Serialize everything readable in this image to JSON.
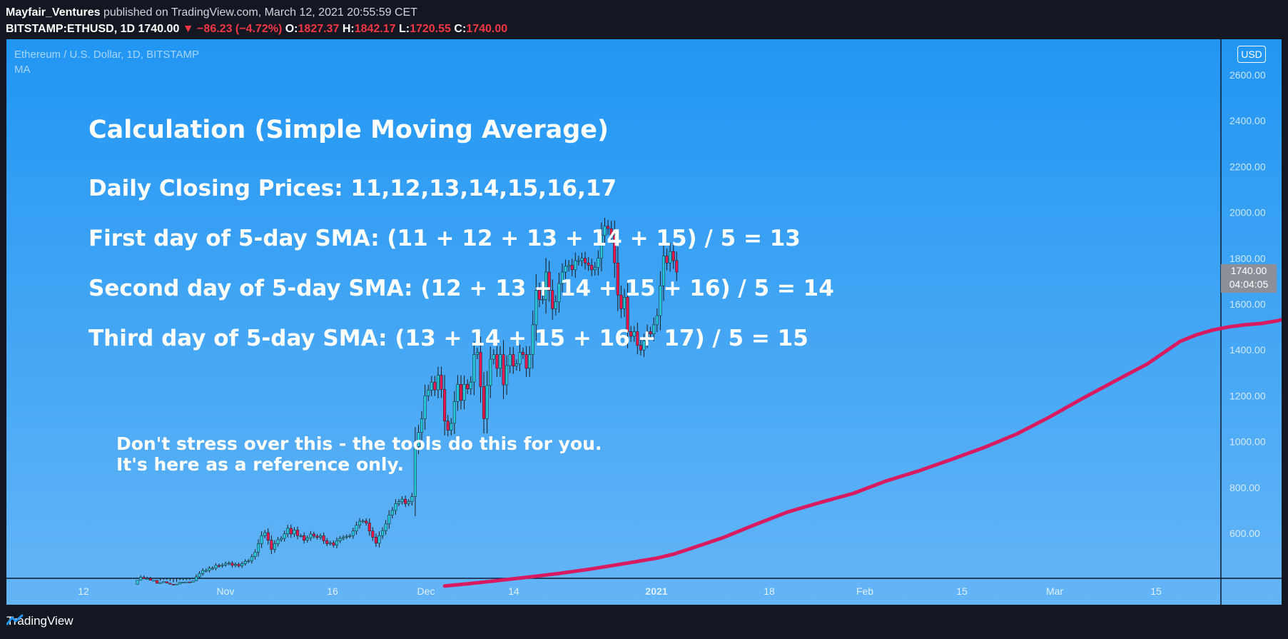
{
  "header": {
    "publisher": "Mayfair_Ventures",
    "published_text": "published on TradingView.com, March 12, 2021 20:55:59 CET",
    "symbol": "BITSTAMP:ETHUSD, 1D",
    "last": "1740.00",
    "change": "▼ −86.23 (−4.72%)",
    "o_label": "O:",
    "o_val": "1827.37",
    "h_label": "H:",
    "h_val": "1842.17",
    "l_label": "L:",
    "l_val": "1720.55",
    "c_label": "C:",
    "c_val": "1740.00"
  },
  "legend": {
    "line1": "Ethereum / U.S. Dollar, 1D, BITSTAMP",
    "line2": "MA"
  },
  "overlay": {
    "title": "Calculation (Simple Moving Average)",
    "line1": "Daily Closing Prices: 11,12,13,14,15,16,17",
    "line2": "First day of 5-day SMA: (11 + 12 + 13 + 14 + 15) / 5 = 13",
    "line3": "Second day of 5-day SMA: (12 + 13 + 14 + 15 + 16) / 5 = 14",
    "line4": "Third day of 5-day SMA: (13 + 14 + 15 + 16 + 17) / 5 = 15",
    "note1": "Don't stress over this - the tools do this for you.",
    "note2": "It's here as a reference only."
  },
  "currency": "USD",
  "price_tag": {
    "price": "1740.00",
    "countdown": "04:04:05"
  },
  "footer": {
    "brand": "TradingView"
  },
  "colors": {
    "bg_top": "#2196f3",
    "bg_bottom": "#64b5f6",
    "up": "#26c6da",
    "down": "#e8174e",
    "ma": "#d81b60"
  },
  "chart_data": {
    "type": "candlestick",
    "symbol": "BITSTAMP:ETHUSD",
    "interval": "1D",
    "y_ticks": [
      "600.00",
      "800.00",
      "1000.00",
      "1200.00",
      "1400.00",
      "1600.00",
      "1800.00",
      "2000.00",
      "2200.00",
      "2400.00",
      "2600.00"
    ],
    "x_ticks": [
      "12",
      "Nov",
      "16",
      "Dec",
      "14",
      "2021",
      "18",
      "Feb",
      "15",
      "Mar",
      "15"
    ],
    "ylim": [
      370,
      2710
    ],
    "grid": false,
    "closes": [
      378,
      395,
      408,
      402,
      403,
      395,
      395,
      382,
      385,
      389,
      383,
      378,
      375,
      379,
      387,
      387,
      388,
      386,
      392,
      410,
      425,
      438,
      438,
      448,
      448,
      460,
      458,
      462,
      469,
      470,
      460,
      465,
      458,
      468,
      478,
      480,
      498,
      518,
      555,
      590,
      603,
      570,
      530,
      555,
      572,
      578,
      598,
      622,
      597,
      614,
      590,
      590,
      570,
      580,
      597,
      588,
      582,
      589,
      568,
      555,
      559,
      548,
      568,
      578,
      583,
      587,
      590,
      610,
      635,
      653,
      654,
      645,
      610,
      583,
      557,
      590,
      612,
      641,
      680,
      700,
      730,
      738,
      749,
      730,
      738,
      760,
      978,
      1040,
      1100,
      1200,
      1225,
      1260,
      1226,
      1290,
      1228,
      1090,
      1050,
      1080,
      1175,
      1250,
      1180,
      1250,
      1230,
      1260,
      1380,
      1390,
      1240,
      1100,
      1245,
      1360,
      1380,
      1320,
      1380,
      1248,
      1332,
      1380,
      1330,
      1340,
      1390,
      1380,
      1320,
      1380,
      1510,
      1660,
      1620,
      1620,
      1740,
      1660,
      1580,
      1610,
      1690,
      1740,
      1765,
      1770,
      1750,
      1790,
      1790,
      1800,
      1780,
      1770,
      1750,
      1760,
      1800,
      1900,
      1940,
      1930,
      1900,
      1780,
      1640,
      1580,
      1630,
      1480,
      1460,
      1480,
      1420,
      1400,
      1440,
      1480,
      1470,
      1510,
      1550,
      1680,
      1810,
      1780,
      1830,
      1790,
      1740
    ],
    "ma": {
      "name": "MA",
      "points": [
        [
          95,
          370
        ],
        [
          100,
          377
        ],
        [
          110,
          392
        ],
        [
          120,
          408
        ],
        [
          130,
          425
        ],
        [
          140,
          445
        ],
        [
          150,
          468
        ],
        [
          160,
          492
        ],
        [
          165,
          509
        ],
        [
          170,
          532
        ],
        [
          180,
          580
        ],
        [
          190,
          638
        ],
        [
          200,
          693
        ],
        [
          210,
          735
        ],
        [
          220,
          774
        ],
        [
          230,
          828
        ],
        [
          240,
          872
        ],
        [
          250,
          922
        ],
        [
          260,
          974
        ],
        [
          270,
          1033
        ],
        [
          280,
          1107
        ],
        [
          290,
          1187
        ],
        [
          300,
          1264
        ],
        [
          310,
          1339
        ],
        [
          315,
          1388
        ],
        [
          320,
          1437
        ],
        [
          325,
          1466
        ],
        [
          330,
          1487
        ],
        [
          335,
          1501
        ],
        [
          340,
          1510
        ],
        [
          345,
          1516
        ],
        [
          350,
          1528
        ],
        [
          355,
          1548
        ],
        [
          360,
          1574
        ],
        [
          365,
          1593
        ],
        [
          370,
          1618
        ]
      ]
    }
  }
}
